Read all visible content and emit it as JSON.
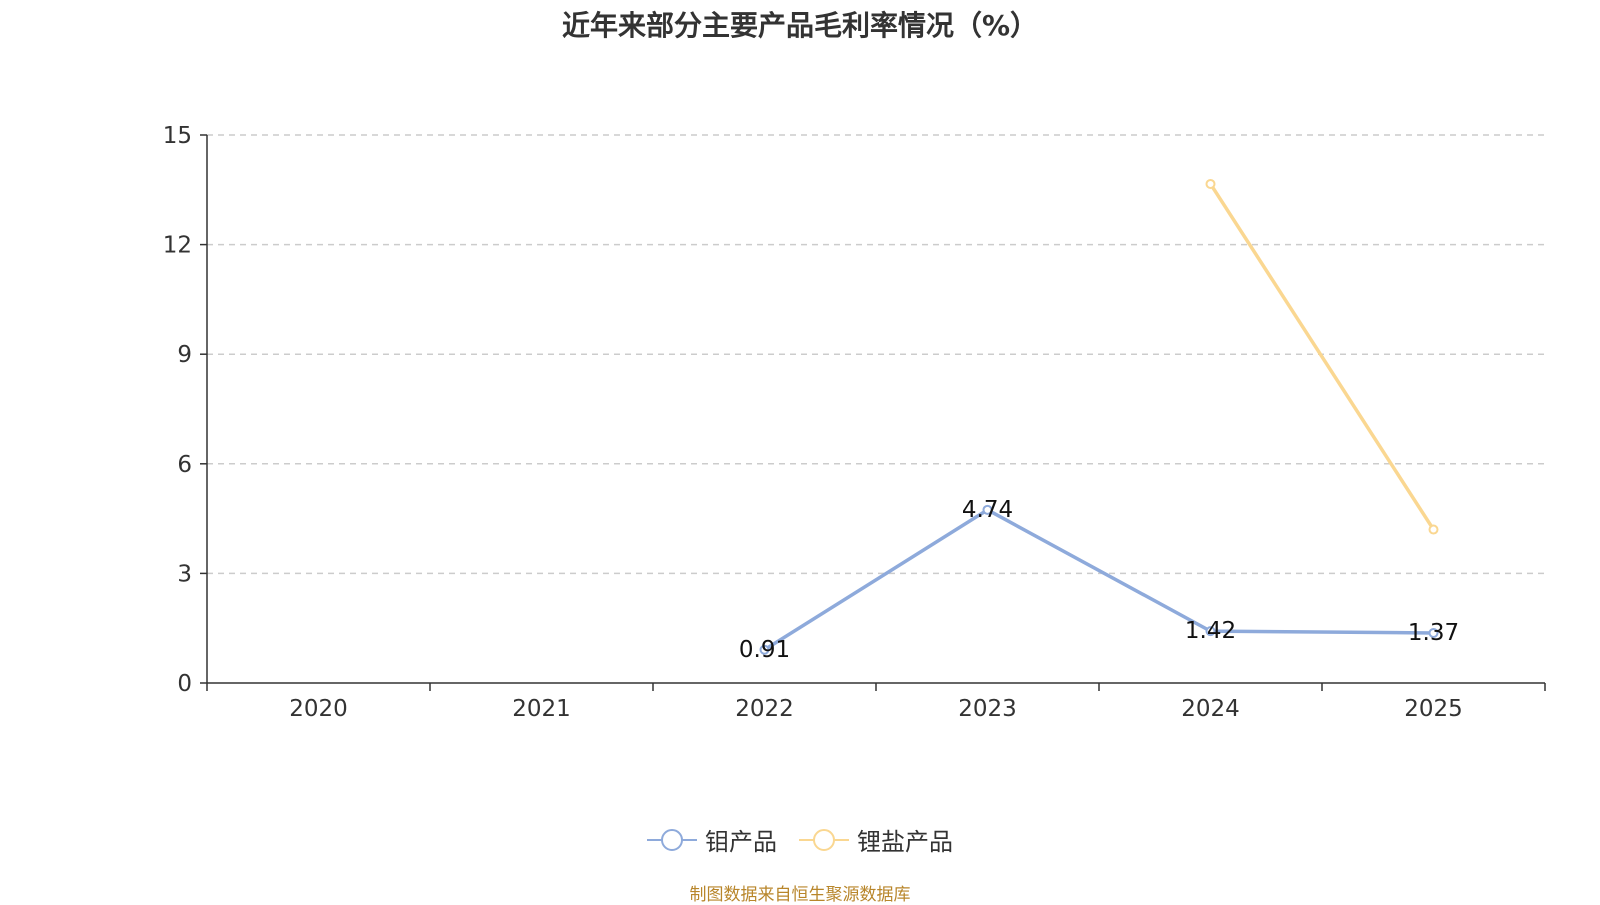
{
  "title": "近年来部分主要产品毛利率情况（%）",
  "source_note": "制图数据来自恒生聚源数据库",
  "chart_data": {
    "type": "line",
    "title": "近年来部分主要产品毛利率情况（%）",
    "categories": [
      "2020",
      "2021",
      "2022",
      "2023",
      "2024",
      "2025"
    ],
    "y_ticks": [
      0,
      3,
      6,
      9,
      12,
      15
    ],
    "ylim": [
      0,
      15
    ],
    "grid": "horizontal-dashed",
    "legend_position": "bottom",
    "series": [
      {
        "name": "钼产品",
        "color": "#8eaadb",
        "values": [
          null,
          null,
          0.91,
          4.74,
          1.42,
          1.37
        ],
        "labels_shown": true
      },
      {
        "name": "锂盐产品",
        "color": "#fad791",
        "values": [
          null,
          null,
          null,
          null,
          13.66,
          4.2
        ],
        "labels_shown": false
      }
    ]
  }
}
